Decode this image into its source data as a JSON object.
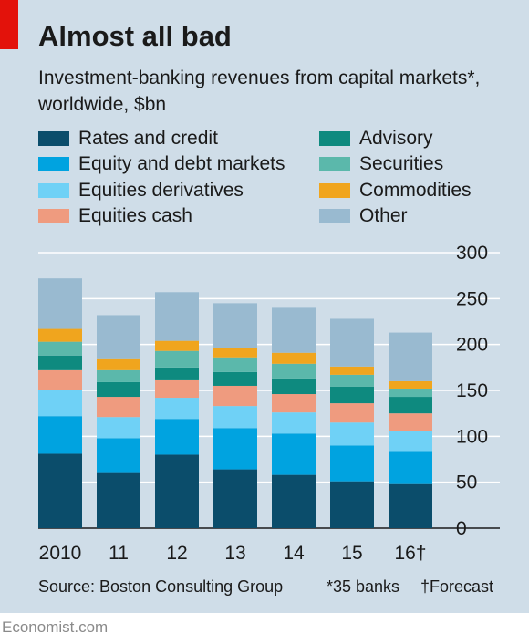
{
  "title": "Almost all bad",
  "subtitle": "Investment-banking revenues from capital markets*, worldwide, $bn",
  "source": "Source: Boston Consulting Group",
  "notes": [
    "*35 banks",
    "†Forecast"
  ],
  "brand": "Economist.com",
  "colors": {
    "panel": "#cfdde8",
    "accent": "#e3120b"
  },
  "chart_data": {
    "type": "bar",
    "stacked": true,
    "title": "Almost all bad",
    "subtitle": "Investment-banking revenues from capital markets*, worldwide, $bn",
    "categories": [
      "2010",
      "11",
      "12",
      "13",
      "14",
      "15",
      "16†"
    ],
    "ylim": [
      0,
      300
    ],
    "yticks": [
      0,
      50,
      100,
      150,
      200,
      250,
      300
    ],
    "y_axis_side": "right",
    "grid": true,
    "legend_position": "top",
    "series": [
      {
        "name": "Rates and credit",
        "color": "#0b4d6b",
        "values": [
          81,
          61,
          80,
          64,
          58,
          51,
          48
        ]
      },
      {
        "name": "Equity and debt markets",
        "color": "#00a3e0",
        "values": [
          41,
          37,
          39,
          45,
          45,
          39,
          36
        ]
      },
      {
        "name": "Equities derivatives",
        "color": "#6fd1f6",
        "values": [
          28,
          23,
          23,
          24,
          23,
          25,
          22
        ]
      },
      {
        "name": "Equities cash",
        "color": "#ef9b7f",
        "values": [
          22,
          22,
          19,
          22,
          20,
          21,
          19
        ]
      },
      {
        "name": "Advisory",
        "color": "#0e8a7f",
        "values": [
          16,
          16,
          14,
          15,
          17,
          18,
          18
        ]
      },
      {
        "name": "Securities",
        "color": "#5bb8ab",
        "values": [
          15,
          13,
          18,
          16,
          16,
          13,
          9
        ]
      },
      {
        "name": "Commodities",
        "color": "#f0a51e",
        "values": [
          14,
          12,
          11,
          10,
          12,
          9,
          8
        ]
      },
      {
        "name": "Other",
        "color": "#99bad0",
        "values": [
          55,
          48,
          53,
          49,
          49,
          52,
          53
        ]
      }
    ]
  }
}
